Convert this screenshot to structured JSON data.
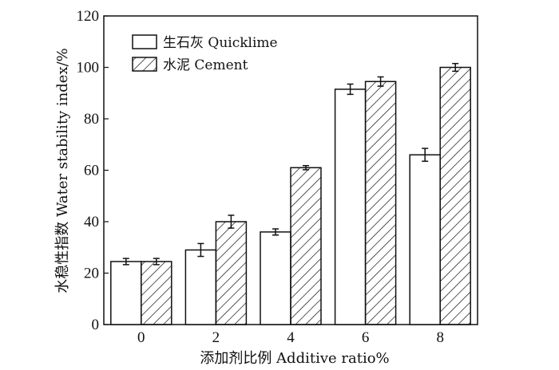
{
  "chart_data": {
    "type": "bar",
    "categories": [
      "0",
      "2",
      "4",
      "6",
      "8"
    ],
    "series": [
      {
        "name": "生石灰 Quicklime",
        "values": [
          24.5,
          29,
          36,
          91.5,
          66
        ],
        "errors": [
          1.2,
          2.5,
          1.2,
          2.0,
          2.5
        ],
        "fill": "#ffffff",
        "pattern": "none"
      },
      {
        "name": "水泥 Cement",
        "values": [
          24.5,
          40,
          61,
          94.5,
          100
        ],
        "errors": [
          1.2,
          2.5,
          0.8,
          1.8,
          1.5
        ],
        "fill": "#ffffff",
        "pattern": "diagonal-hatch"
      }
    ],
    "xlabel": "添加剂比例 Additive ratio%",
    "ylabel": "水稳性指数 Water stability index/%",
    "ylim": [
      0,
      120
    ],
    "yticks": [
      "0",
      "20",
      "40",
      "60",
      "80",
      "100",
      "120"
    ],
    "grid": false,
    "legend_position": "top-left",
    "colors": {
      "stroke": "#111111",
      "background": "#ffffff"
    }
  }
}
